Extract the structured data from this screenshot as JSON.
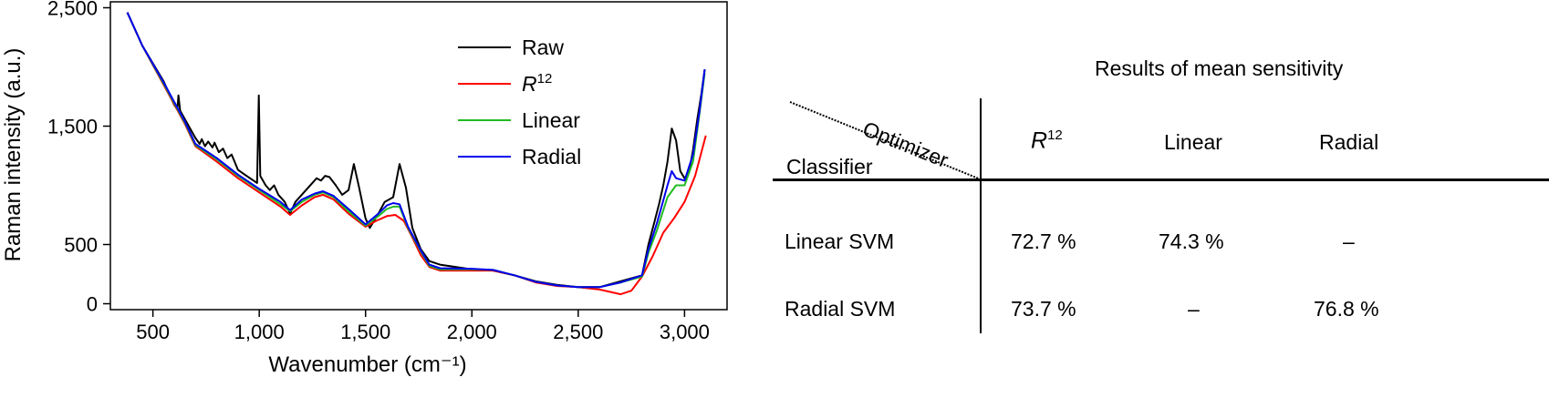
{
  "chart_data": {
    "type": "line",
    "xlabel": "Wavenumber (cm⁻¹)",
    "ylabel": "Raman intensity (a.u.)",
    "xlim": [
      300,
      3200
    ],
    "ylim": [
      -50,
      2550
    ],
    "xticks": [
      500,
      1000,
      1500,
      2000,
      2500,
      3000
    ],
    "xtick_labels": [
      "500",
      "1,000",
      "1,500",
      "2,000",
      "2,500",
      "3,000"
    ],
    "yticks": [
      0,
      500,
      1500,
      2500
    ],
    "ytick_labels": [
      "0",
      "500",
      "1,500",
      "2,500"
    ],
    "legend_position": "top-right",
    "series": [
      {
        "name": "Raw",
        "color": "#000000",
        "points": [
          [
            380,
            2460
          ],
          [
            450,
            2180
          ],
          [
            550,
            1880
          ],
          [
            600,
            1680
          ],
          [
            615,
            1640
          ],
          [
            620,
            1760
          ],
          [
            628,
            1630
          ],
          [
            700,
            1400
          ],
          [
            720,
            1350
          ],
          [
            730,
            1390
          ],
          [
            745,
            1330
          ],
          [
            760,
            1370
          ],
          [
            780,
            1320
          ],
          [
            790,
            1360
          ],
          [
            810,
            1280
          ],
          [
            830,
            1310
          ],
          [
            850,
            1230
          ],
          [
            870,
            1260
          ],
          [
            900,
            1130
          ],
          [
            940,
            1080
          ],
          [
            990,
            1020
          ],
          [
            998,
            1760
          ],
          [
            1005,
            1080
          ],
          [
            1030,
            1000
          ],
          [
            1050,
            960
          ],
          [
            1070,
            1000
          ],
          [
            1090,
            920
          ],
          [
            1120,
            860
          ],
          [
            1145,
            760
          ],
          [
            1170,
            860
          ],
          [
            1210,
            940
          ],
          [
            1250,
            1020
          ],
          [
            1270,
            1060
          ],
          [
            1290,
            1040
          ],
          [
            1310,
            1080
          ],
          [
            1330,
            1070
          ],
          [
            1360,
            1000
          ],
          [
            1390,
            920
          ],
          [
            1420,
            960
          ],
          [
            1445,
            1180
          ],
          [
            1470,
            980
          ],
          [
            1500,
            720
          ],
          [
            1520,
            640
          ],
          [
            1560,
            760
          ],
          [
            1590,
            860
          ],
          [
            1610,
            880
          ],
          [
            1630,
            900
          ],
          [
            1660,
            1180
          ],
          [
            1690,
            980
          ],
          [
            1720,
            640
          ],
          [
            1760,
            460
          ],
          [
            1800,
            360
          ],
          [
            1850,
            330
          ],
          [
            2000,
            290
          ],
          [
            2100,
            280
          ],
          [
            2200,
            240
          ],
          [
            2300,
            190
          ],
          [
            2400,
            160
          ],
          [
            2500,
            140
          ],
          [
            2600,
            140
          ],
          [
            2700,
            190
          ],
          [
            2800,
            240
          ],
          [
            2830,
            500
          ],
          [
            2860,
            700
          ],
          [
            2880,
            840
          ],
          [
            2900,
            1000
          ],
          [
            2920,
            1200
          ],
          [
            2940,
            1480
          ],
          [
            2960,
            1380
          ],
          [
            2980,
            1120
          ],
          [
            3000,
            1060
          ],
          [
            3020,
            1100
          ],
          [
            3040,
            1300
          ],
          [
            3060,
            1560
          ],
          [
            3080,
            1780
          ],
          [
            3095,
            1980
          ]
        ]
      },
      {
        "name": "R12",
        "color": "#ff0000",
        "points": [
          [
            380,
            2460
          ],
          [
            450,
            2180
          ],
          [
            550,
            1850
          ],
          [
            650,
            1520
          ],
          [
            700,
            1330
          ],
          [
            800,
            1200
          ],
          [
            900,
            1060
          ],
          [
            1000,
            940
          ],
          [
            1100,
            820
          ],
          [
            1145,
            750
          ],
          [
            1200,
            830
          ],
          [
            1260,
            900
          ],
          [
            1300,
            920
          ],
          [
            1350,
            880
          ],
          [
            1420,
            760
          ],
          [
            1500,
            650
          ],
          [
            1550,
            700
          ],
          [
            1600,
            740
          ],
          [
            1640,
            750
          ],
          [
            1680,
            700
          ],
          [
            1720,
            560
          ],
          [
            1760,
            410
          ],
          [
            1800,
            310
          ],
          [
            1850,
            280
          ],
          [
            2000,
            280
          ],
          [
            2100,
            280
          ],
          [
            2200,
            240
          ],
          [
            2300,
            180
          ],
          [
            2400,
            150
          ],
          [
            2500,
            140
          ],
          [
            2600,
            120
          ],
          [
            2700,
            80
          ],
          [
            2750,
            110
          ],
          [
            2800,
            230
          ],
          [
            2850,
            400
          ],
          [
            2900,
            600
          ],
          [
            2950,
            720
          ],
          [
            3000,
            860
          ],
          [
            3050,
            1080
          ],
          [
            3100,
            1420
          ]
        ]
      },
      {
        "name": "Linear",
        "color": "#22bb22",
        "points": [
          [
            380,
            2460
          ],
          [
            450,
            2180
          ],
          [
            550,
            1860
          ],
          [
            650,
            1530
          ],
          [
            700,
            1340
          ],
          [
            800,
            1220
          ],
          [
            900,
            1080
          ],
          [
            1000,
            960
          ],
          [
            1100,
            840
          ],
          [
            1145,
            780
          ],
          [
            1200,
            860
          ],
          [
            1260,
            920
          ],
          [
            1300,
            940
          ],
          [
            1350,
            900
          ],
          [
            1420,
            780
          ],
          [
            1500,
            660
          ],
          [
            1560,
            740
          ],
          [
            1600,
            800
          ],
          [
            1630,
            820
          ],
          [
            1660,
            820
          ],
          [
            1700,
            640
          ],
          [
            1760,
            440
          ],
          [
            1800,
            320
          ],
          [
            1850,
            290
          ],
          [
            2000,
            290
          ],
          [
            2100,
            285
          ],
          [
            2200,
            240
          ],
          [
            2300,
            185
          ],
          [
            2400,
            155
          ],
          [
            2500,
            140
          ],
          [
            2600,
            140
          ],
          [
            2700,
            180
          ],
          [
            2800,
            230
          ],
          [
            2830,
            430
          ],
          [
            2870,
            620
          ],
          [
            2920,
            900
          ],
          [
            2960,
            1000
          ],
          [
            3000,
            1000
          ],
          [
            3040,
            1200
          ],
          [
            3070,
            1600
          ],
          [
            3095,
            1950
          ]
        ]
      },
      {
        "name": "Radial",
        "color": "#0000ee",
        "points": [
          [
            380,
            2460
          ],
          [
            450,
            2180
          ],
          [
            550,
            1870
          ],
          [
            650,
            1540
          ],
          [
            700,
            1350
          ],
          [
            800,
            1230
          ],
          [
            900,
            1090
          ],
          [
            1000,
            970
          ],
          [
            1100,
            860
          ],
          [
            1145,
            790
          ],
          [
            1200,
            880
          ],
          [
            1260,
            930
          ],
          [
            1300,
            950
          ],
          [
            1350,
            910
          ],
          [
            1420,
            800
          ],
          [
            1500,
            670
          ],
          [
            1560,
            760
          ],
          [
            1600,
            830
          ],
          [
            1630,
            850
          ],
          [
            1660,
            840
          ],
          [
            1700,
            650
          ],
          [
            1760,
            450
          ],
          [
            1800,
            330
          ],
          [
            1850,
            300
          ],
          [
            2000,
            295
          ],
          [
            2100,
            285
          ],
          [
            2200,
            240
          ],
          [
            2300,
            185
          ],
          [
            2400,
            155
          ],
          [
            2500,
            140
          ],
          [
            2600,
            140
          ],
          [
            2700,
            180
          ],
          [
            2800,
            240
          ],
          [
            2830,
            460
          ],
          [
            2870,
            680
          ],
          [
            2920,
            1000
          ],
          [
            2940,
            1120
          ],
          [
            2960,
            1060
          ],
          [
            3000,
            1040
          ],
          [
            3040,
            1260
          ],
          [
            3070,
            1620
          ],
          [
            3095,
            1980
          ]
        ]
      }
    ]
  },
  "legend": {
    "raw": "Raw",
    "r12_base": "R",
    "r12_sup": "12",
    "linear": "Linear",
    "radial": "Radial"
  },
  "table": {
    "title": "Results of mean sensitivity",
    "corner_optimizer": "Optimizer",
    "corner_classifier": "Classifier",
    "col_r12_base": "R",
    "col_r12_sup": "12",
    "col_linear": "Linear",
    "col_radial": "Radial",
    "rows": [
      {
        "label": "Linear SVM",
        "r12": "72.7 %",
        "linear": "74.3 %",
        "radial": "–"
      },
      {
        "label": "Radial SVM",
        "r12": "73.7 %",
        "linear": "–",
        "radial": "76.8 %"
      }
    ]
  }
}
